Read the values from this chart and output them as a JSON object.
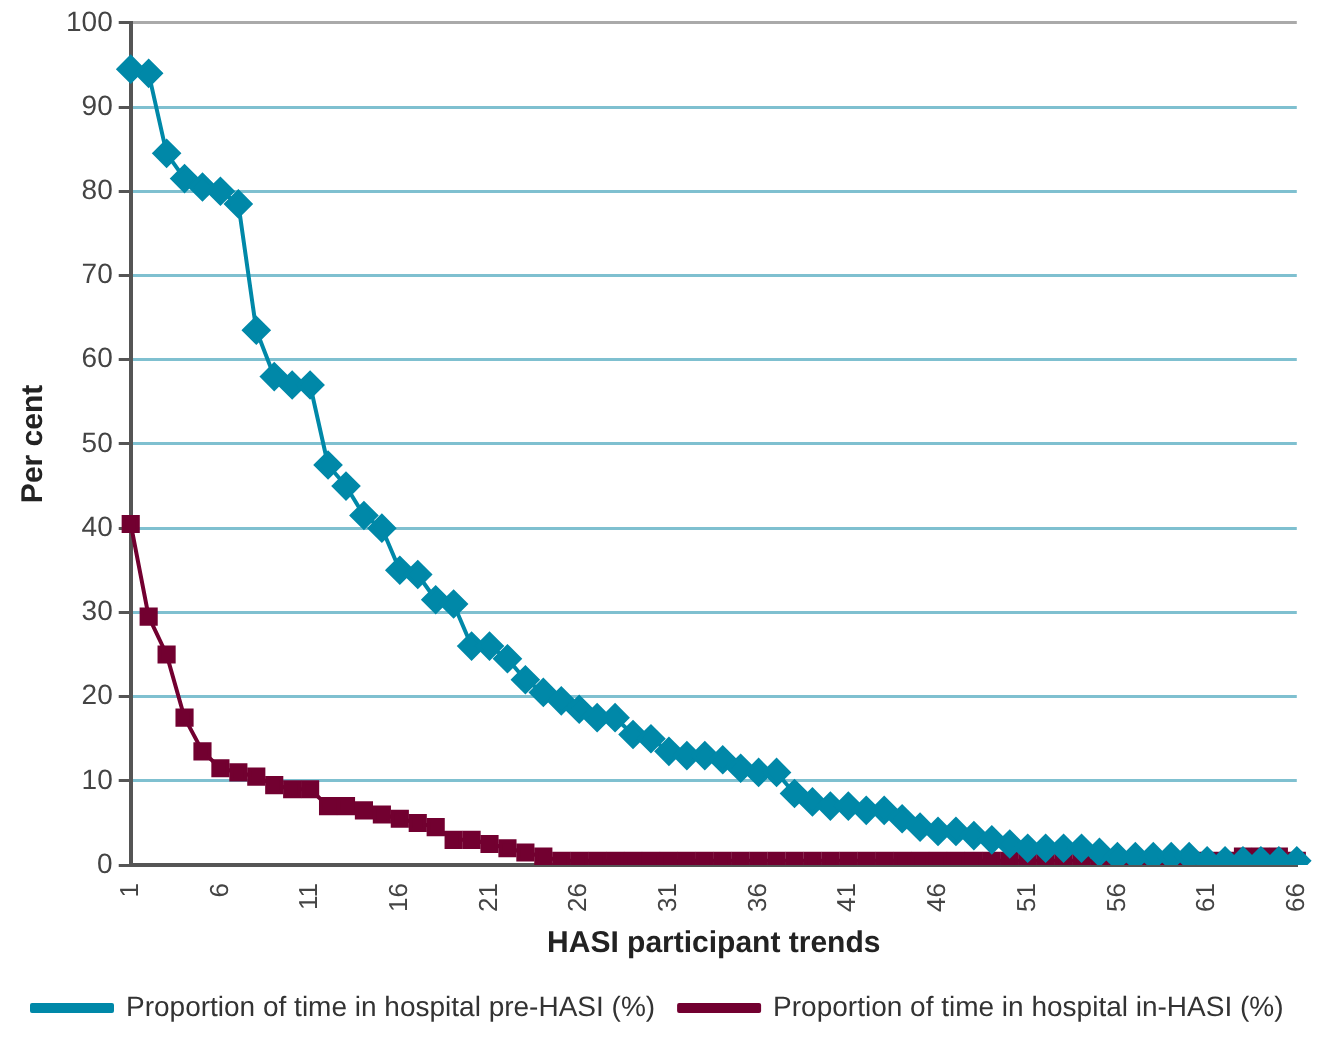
{
  "chart_data": {
    "type": "line",
    "xlabel": "HASI participant trends",
    "ylabel": "Per cent",
    "categories": [
      "1",
      null,
      null,
      null,
      null,
      "6",
      null,
      null,
      null,
      null,
      "11",
      null,
      null,
      null,
      null,
      "16",
      null,
      null,
      null,
      null,
      "21",
      null,
      null,
      null,
      null,
      "26",
      null,
      null,
      null,
      null,
      "31",
      null,
      null,
      null,
      null,
      "36",
      null,
      null,
      null,
      null,
      "41",
      null,
      null,
      null,
      null,
      "46",
      null,
      null,
      null,
      null,
      "51",
      null,
      null,
      null,
      null,
      "56",
      null,
      null,
      null,
      null,
      "61",
      null,
      null,
      null,
      null,
      "66"
    ],
    "series": [
      {
        "name": "Proportion of time in hospital pre-HASI (%)",
        "color": "#0088a8",
        "marker": "diamond",
        "values": [
          94.5,
          94,
          84.5,
          81.5,
          80.5,
          80,
          78.5,
          63.5,
          58,
          57,
          57,
          47.5,
          45,
          41.5,
          40,
          35,
          34.5,
          31.5,
          31,
          26,
          26,
          24.5,
          22,
          20.5,
          19.5,
          18.5,
          17.5,
          17.5,
          15.5,
          15,
          13.5,
          13,
          13,
          12.5,
          11.5,
          11,
          11,
          8.5,
          7.5,
          7,
          7,
          6.5,
          6.5,
          5.5,
          4.5,
          4,
          4,
          3.5,
          3,
          2.5,
          2,
          2,
          2,
          2,
          1.5,
          1,
          1,
          1,
          1,
          1,
          0.5,
          0.5,
          0.5,
          0.5,
          0.5,
          0.5
        ]
      },
      {
        "name": "Proportion of time in hospital in-HASI (%)",
        "color": "#720030",
        "marker": "square",
        "values": [
          40.5,
          29.5,
          25,
          17.5,
          13.5,
          11.5,
          11,
          10.5,
          9.5,
          9,
          9,
          7,
          7,
          6.5,
          6,
          5.5,
          5,
          4.5,
          3,
          3,
          2.5,
          2,
          1.5,
          1,
          0.5,
          0.5,
          0.5,
          0.5,
          0.5,
          0.5,
          0.5,
          0.5,
          0.5,
          0.5,
          0.5,
          0.5,
          0.5,
          0.5,
          0.5,
          0.5,
          0.5,
          0.5,
          0.5,
          0.5,
          0.5,
          0.5,
          0.5,
          0.5,
          0.5,
          0.5,
          0.5,
          0.5,
          0.5,
          0.5,
          0.5,
          0.5,
          0.5,
          0.5,
          0.5,
          0.5,
          0.5,
          0.5,
          1,
          1,
          1,
          0.5
        ]
      }
    ],
    "ylim": [
      0,
      100
    ],
    "yticks": [
      0,
      10,
      20,
      30,
      40,
      50,
      60,
      70,
      80,
      90,
      100
    ],
    "grid": "y",
    "legend": "bottom",
    "line_style": "solid"
  }
}
